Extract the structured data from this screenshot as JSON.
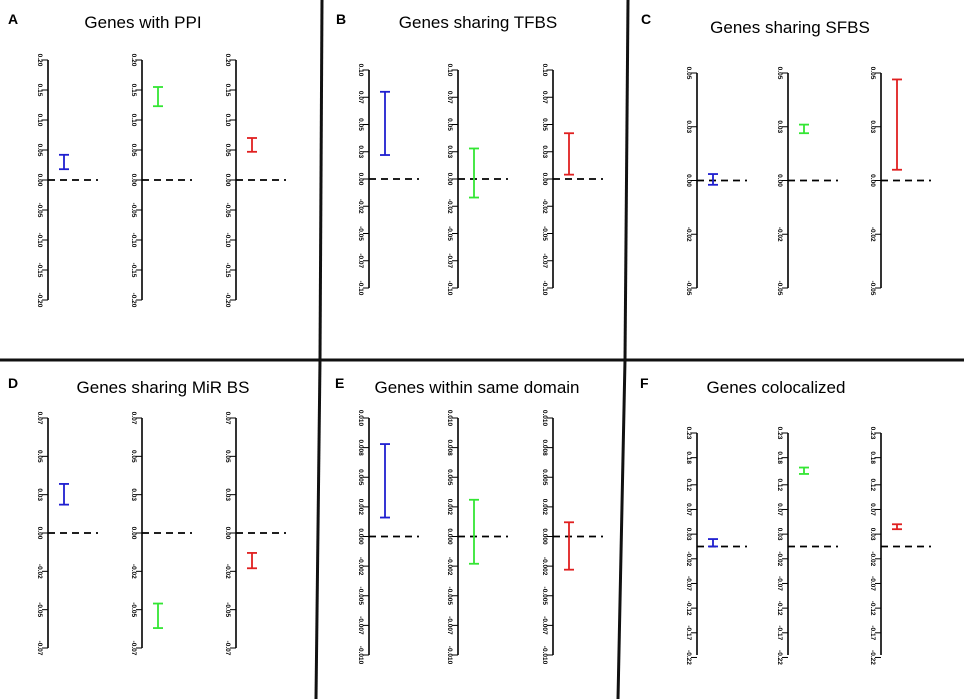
{
  "chart_data": [
    {
      "panel": "A",
      "title": "Genes with PPI",
      "type": "errorbar",
      "ylim": [
        -0.2,
        0.2
      ],
      "ticks": [
        "0.20",
        "0.15",
        "0.10",
        "0.05",
        "0.00",
        "-0.05",
        "-0.10",
        "-0.15",
        "-0.20"
      ],
      "tick_values": [
        0.2,
        0.15,
        0.1,
        0.05,
        0.0,
        -0.05,
        -0.1,
        -0.15,
        -0.2
      ],
      "series": [
        {
          "color": "#1f1fd0",
          "low": 0.018,
          "high": 0.042
        },
        {
          "color": "#33e633",
          "low": 0.123,
          "high": 0.155
        },
        {
          "color": "#e02020",
          "low": 0.047,
          "high": 0.07
        }
      ]
    },
    {
      "panel": "B",
      "title": "Genes sharing TFBS",
      "type": "errorbar",
      "ylim": [
        -0.1,
        0.1
      ],
      "ticks": [
        "0.10",
        "0.07",
        "0.05",
        "0.03",
        "0.00",
        "-0.02",
        "-0.05",
        "-0.07",
        "-0.10"
      ],
      "tick_values": [
        0.1,
        0.075,
        0.05,
        0.025,
        0.0,
        -0.025,
        -0.05,
        -0.075,
        -0.1
      ],
      "series": [
        {
          "color": "#1f1fd0",
          "low": 0.022,
          "high": 0.08
        },
        {
          "color": "#33e633",
          "low": -0.017,
          "high": 0.028
        },
        {
          "color": "#e02020",
          "low": 0.004,
          "high": 0.042
        }
      ]
    },
    {
      "panel": "C",
      "title": "Genes sharing SFBS",
      "type": "errorbar",
      "ylim": [
        -0.05,
        0.05
      ],
      "ticks": [
        "0.05",
        "0.03",
        "0.00",
        "-0.02",
        "-0.05"
      ],
      "tick_values": [
        0.05,
        0.025,
        0.0,
        -0.025,
        -0.05
      ],
      "series": [
        {
          "color": "#1f1fd0",
          "low": -0.002,
          "high": 0.003
        },
        {
          "color": "#33e633",
          "low": 0.022,
          "high": 0.026
        },
        {
          "color": "#e02020",
          "low": 0.005,
          "high": 0.047
        }
      ]
    },
    {
      "panel": "D",
      "title": "Genes sharing MiR BS",
      "type": "errorbar",
      "ylim": [
        -0.075,
        0.075
      ],
      "ticks": [
        "0.07",
        "0.05",
        "0.03",
        "0.00",
        "-0.02",
        "-0.05",
        "-0.07"
      ],
      "tick_values": [
        0.075,
        0.05,
        0.025,
        0.0,
        -0.025,
        -0.05,
        -0.075
      ],
      "series": [
        {
          "color": "#1f1fd0",
          "low": 0.0185,
          "high": 0.032
        },
        {
          "color": "#33e633",
          "low": -0.062,
          "high": -0.046
        },
        {
          "color": "#e02020",
          "low": -0.023,
          "high": -0.013
        }
      ]
    },
    {
      "panel": "E",
      "title": "Genes within same domain",
      "type": "errorbar",
      "ylim": [
        -0.01,
        0.01
      ],
      "ticks": [
        "0.010",
        "0.008",
        "0.005",
        "0.002",
        "0.000",
        "-0.002",
        "-0.005",
        "-0.007",
        "-0.010"
      ],
      "tick_values": [
        0.01,
        0.0075,
        0.005,
        0.0025,
        0.0,
        -0.0025,
        -0.005,
        -0.0075,
        -0.01
      ],
      "series": [
        {
          "color": "#1f1fd0",
          "low": 0.0016,
          "high": 0.0078
        },
        {
          "color": "#33e633",
          "low": -0.0023,
          "high": 0.0031
        },
        {
          "color": "#e02020",
          "low": -0.0028,
          "high": 0.0012
        }
      ]
    },
    {
      "panel": "F",
      "title": "Genes colocalized",
      "type": "errorbar",
      "ylim": [
        -0.22,
        0.23
      ],
      "ticks": [
        "0.23",
        "0.18",
        "0.12",
        "0.07",
        "0.03",
        "-0.02",
        "-0.07",
        "-0.12",
        "-0.17",
        "-0.22"
      ],
      "tick_values": [
        0.23,
        0.18,
        0.125,
        0.075,
        0.025,
        -0.025,
        -0.075,
        -0.125,
        -0.175,
        -0.225
      ],
      "zero": 0.0,
      "series": [
        {
          "color": "#1f1fd0",
          "low": 0.0,
          "high": 0.015
        },
        {
          "color": "#33e633",
          "low": 0.147,
          "high": 0.16
        },
        {
          "color": "#e02020",
          "low": 0.035,
          "high": 0.045
        }
      ]
    }
  ]
}
